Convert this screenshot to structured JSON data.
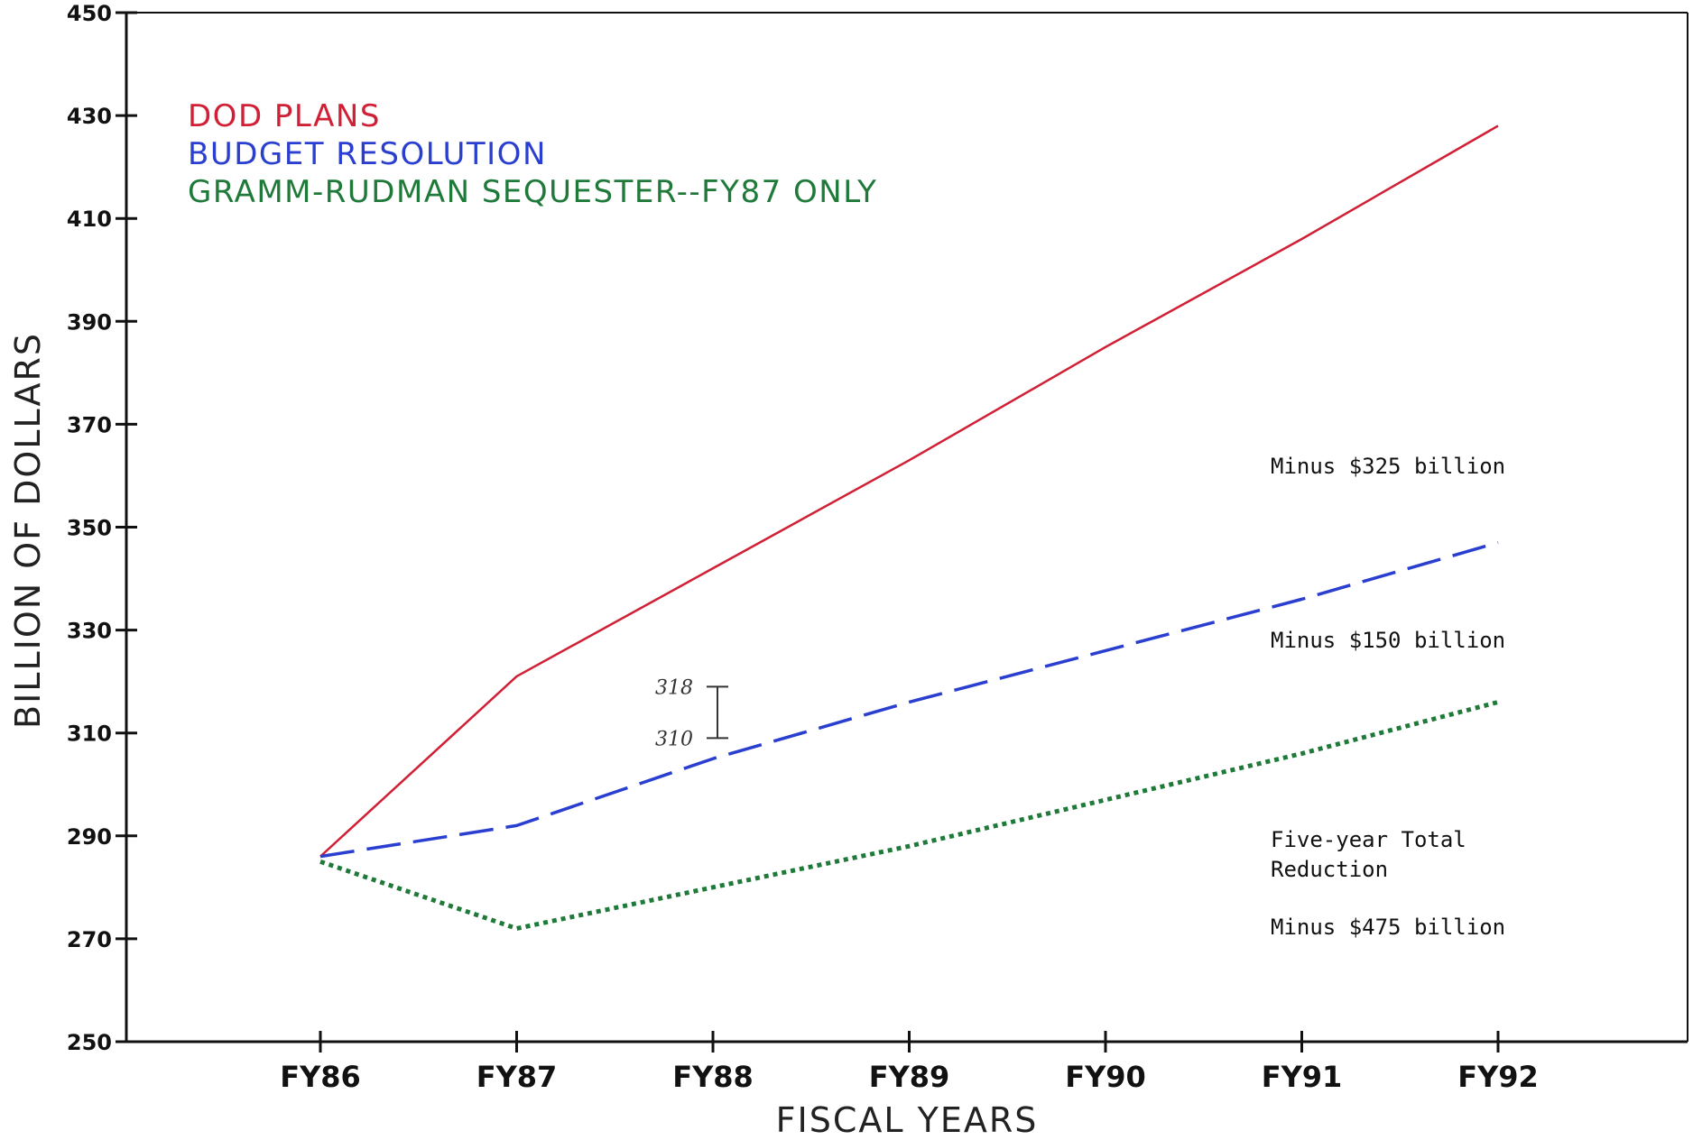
{
  "chart_data": {
    "type": "line",
    "xlabel": "FISCAL YEARS",
    "ylabel": "BILLION OF DOLLARS",
    "ylim": [
      250,
      450
    ],
    "yticks": [
      250,
      270,
      290,
      310,
      330,
      350,
      370,
      390,
      410,
      430,
      450
    ],
    "categories": [
      "FY86",
      "FY87",
      "FY88",
      "FY89",
      "FY90",
      "FY91",
      "FY92"
    ],
    "grid": false,
    "legend_position": "top-left",
    "series": [
      {
        "name": "DOD PLANS",
        "color": "#d11f35",
        "style": "solid",
        "values": [
          286,
          321,
          342,
          363,
          385,
          406,
          428
        ]
      },
      {
        "name": "BUDGET RESOLUTION",
        "color": "#2a3fd0",
        "style": "dashed",
        "values": [
          286,
          292,
          305,
          316,
          326,
          336,
          347
        ]
      },
      {
        "name": "GRAMM-RUDMAN SEQUESTER--FY87 ONLY",
        "color": "#1f7a3a",
        "style": "dotted",
        "values": [
          285,
          272,
          280,
          288,
          297,
          306,
          316
        ]
      }
    ],
    "annotations": [
      {
        "text": "Minus $325 billion",
        "x": "FY92",
        "y": 357
      },
      {
        "text": "Minus $150 billion",
        "x": "FY92",
        "y": 322
      },
      {
        "text": "Five-year Total",
        "x": "FY92",
        "y": 287
      },
      {
        "text": "Reduction",
        "x": "FY92",
        "y": 281
      },
      {
        "text": "Minus $475 billion",
        "x": "FY92",
        "y": 269
      }
    ],
    "handwritten_range": {
      "high": "318",
      "low": "310",
      "x": "FY88",
      "y_high": 319,
      "y_low": 309
    }
  }
}
